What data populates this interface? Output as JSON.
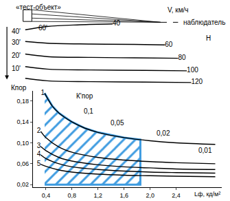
{
  "chart_data": [
    {
      "type": "line",
      "tick_labels": false,
      "grid": false,
      "xlim": [
        0,
        100
      ],
      "ylim": [
        0,
        100
      ],
      "series": [
        {
          "name": "40",
          "color": "#000000",
          "x": [
            10,
            20,
            35,
            50
          ],
          "values": [
            66,
            70,
            72,
            73
          ]
        },
        {
          "name": "60",
          "color": "#000000",
          "x": [
            10,
            20,
            40,
            60,
            74
          ],
          "values": [
            52,
            50,
            49,
            48.5,
            48
          ]
        },
        {
          "name": "80",
          "color": "#000000",
          "x": [
            10,
            20,
            40,
            60,
            80
          ],
          "values": [
            37,
            34,
            33,
            32.5,
            32
          ]
        },
        {
          "name": "100",
          "color": "#000000",
          "x": [
            10,
            20,
            40,
            65,
            84
          ],
          "values": [
            22,
            19,
            18,
            17.5,
            17
          ]
        },
        {
          "name": "120",
          "color": "#000000",
          "x": [
            10,
            20,
            40,
            65,
            86
          ],
          "values": [
            8,
            5,
            4,
            3.5,
            3
          ]
        }
      ],
      "annotations": [
        {
          "text": "«тест-объект»",
          "x": 16,
          "y": 93
        },
        {
          "text": "60'",
          "x": 18,
          "y": 68
        },
        {
          "text": "40'",
          "x": 3,
          "y": 64
        },
        {
          "text": "30'",
          "x": 3,
          "y": 51
        },
        {
          "text": "20'",
          "x": 3,
          "y": 35
        },
        {
          "text": "10'",
          "x": 3,
          "y": 20
        },
        {
          "text": "V, км/ч",
          "x": 80,
          "y": 90
        },
        {
          "text": "наблюдатель",
          "x": 92,
          "y": 75
        },
        {
          "text": "H",
          "x": 94,
          "y": 56
        }
      ]
    },
    {
      "type": "line",
      "grid": false,
      "xlabel": "Lф, кд/м²",
      "ylabel": "Кпор",
      "xlim": [
        0.2,
        3.1
      ],
      "ylim": [
        0.015,
        0.2
      ],
      "xticks": [
        {
          "value": 0.4,
          "label": "0,4"
        },
        {
          "value": 0.8,
          "label": "0,8"
        },
        {
          "value": 1.2,
          "label": "1,2"
        },
        {
          "value": 1.6,
          "label": "1,6"
        },
        {
          "value": 2.0,
          "label": "2,0"
        },
        {
          "value": 2.4,
          "label": "2,4"
        }
      ],
      "yticks": [
        {
          "value": 0.02,
          "label": "0,02"
        },
        {
          "value": 0.06,
          "label": "0,06"
        },
        {
          "value": 0.1,
          "label": "0,10"
        },
        {
          "value": 0.14,
          "label": "0,14"
        },
        {
          "value": 0.18,
          "label": "0,18"
        }
      ],
      "series": [
        {
          "type": "area",
          "color": "#3d9be0",
          "x": [
            0.38,
            0.5,
            0.6,
            0.8,
            1.0,
            1.2,
            1.6,
            1.85,
            1.85,
            0.38
          ],
          "values": [
            0.195,
            0.17,
            0.157,
            0.14,
            0.128,
            0.12,
            0.11,
            0.106,
            0.02,
            0.02
          ]
        },
        {
          "name": "1",
          "color": "#000000",
          "x": [
            0.38,
            0.5,
            0.6,
            0.8,
            1.0,
            1.2,
            1.6,
            2.0,
            2.4,
            3.0
          ],
          "values": [
            0.195,
            0.17,
            0.157,
            0.14,
            0.128,
            0.12,
            0.11,
            0.104,
            0.1,
            0.097
          ]
        },
        {
          "name": "2",
          "color": "#000000",
          "x": [
            0.32,
            0.4,
            0.6,
            0.8,
            1.2,
            1.6,
            2.0,
            2.4,
            3.0
          ],
          "values": [
            0.122,
            0.11,
            0.092,
            0.082,
            0.072,
            0.067,
            0.064,
            0.062,
            0.06
          ]
        },
        {
          "name": "3",
          "color": "#000000",
          "x": [
            0.32,
            0.4,
            0.6,
            0.8,
            1.2,
            1.6,
            2.0,
            2.4,
            3.0
          ],
          "values": [
            0.093,
            0.085,
            0.072,
            0.065,
            0.058,
            0.054,
            0.052,
            0.05,
            0.049
          ]
        },
        {
          "name": "4",
          "color": "#000000",
          "x": [
            0.32,
            0.4,
            0.6,
            0.8,
            1.2,
            1.6,
            2.0,
            2.4,
            3.0
          ],
          "values": [
            0.077,
            0.07,
            0.06,
            0.054,
            0.049,
            0.046,
            0.044,
            0.043,
            0.042
          ]
        },
        {
          "name": "5",
          "color": "#000000",
          "x": [
            0.32,
            0.4,
            0.6,
            0.8,
            1.2,
            1.6,
            2.0,
            2.4,
            3.0
          ],
          "values": [
            0.059,
            0.055,
            0.048,
            0.044,
            0.04,
            0.038,
            0.037,
            0.036,
            0.035
          ]
        }
      ],
      "annotations": [
        {
          "text": "К'пор",
          "x": 1.0,
          "y": 0.19
        },
        {
          "text": "0,1",
          "x": 1.05,
          "y": 0.16
        },
        {
          "text": "0,05",
          "x": 1.5,
          "y": 0.138
        },
        {
          "text": "0,02",
          "x": 2.2,
          "y": 0.118
        },
        {
          "text": "0,01",
          "x": 2.85,
          "y": 0.085
        }
      ]
    }
  ]
}
